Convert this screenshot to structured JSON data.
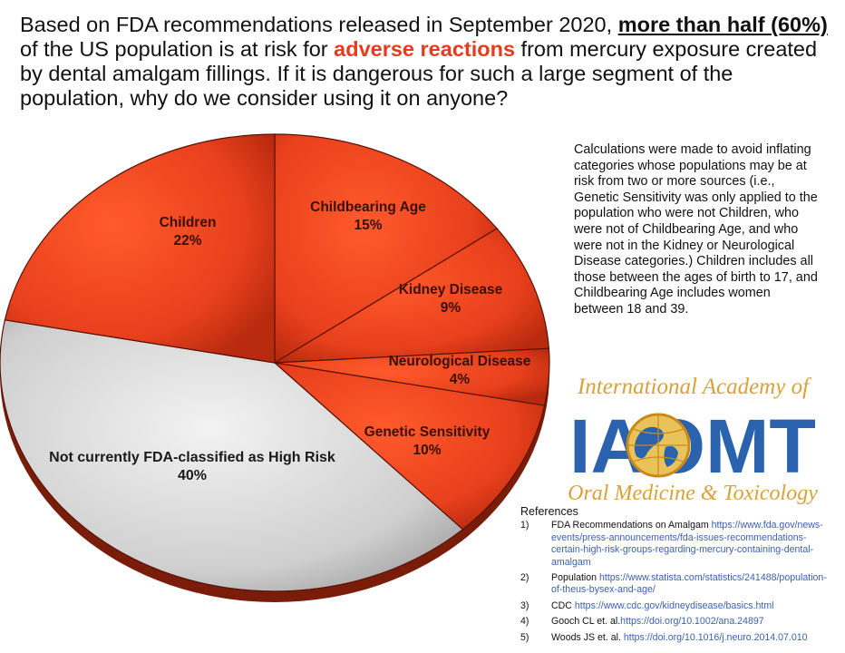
{
  "headline": {
    "part1": "Based on FDA recommendations released in September 2020, ",
    "emph": "more than half (60%)",
    "part2": " of the US population is at risk for ",
    "red": "adverse reactions",
    "part3": " from mercury exposure created by dental amalgam fillings. If it is dangerous for such a large segment of the population, why do we consider using it on anyone?"
  },
  "chart_data": {
    "type": "pie",
    "title": "",
    "slices": [
      {
        "label": "Childbearing Age",
        "value": 15,
        "value_label": "15%",
        "color": "#e8401c"
      },
      {
        "label": "Kidney Disease",
        "value": 9,
        "value_label": "9%",
        "color": "#e8401c"
      },
      {
        "label": "Neurological Disease",
        "value": 4,
        "value_label": "4%",
        "color": "#e8401c"
      },
      {
        "label": "Genetic Sensitivity",
        "value": 10,
        "value_label": "10%",
        "color": "#e8401c"
      },
      {
        "label": "Not currently FDA-classified as High Risk",
        "value": 40,
        "value_label": "40%",
        "color": "#d4d4d4"
      },
      {
        "label": "Children",
        "value": 22,
        "value_label": "22%",
        "color": "#e8401c"
      }
    ]
  },
  "explanation": "Calculations were made to avoid inflating categories whose populations may be at risk from two or more sources (i.e., Genetic Sensitivity was only applied to the population who were not Children, who were not of Childbearing Age, and who were not in the Kidney or Neurological Disease categories.) Children includes all those between the ages of birth to 17, and Childbearing Age includes women between 18 and 39.",
  "logo": {
    "top_text": "International Academy of",
    "acronym": "IAOMT",
    "bottom_text": "Oral Medicine & Toxicology"
  },
  "references": {
    "title": "References",
    "items": [
      {
        "num": "1)",
        "text": "FDA Recommendations on Amalgam ",
        "link": "https://www.fda.gov/news-events/press-announcements/fda-issues-recommendations-certain-high-risk-groups-regarding-mercury-containing-dental-amalgam"
      },
      {
        "num": "2)",
        "text": "Population ",
        "link": "https://www.statista.com/statistics/241488/population-of-theus-bysex-and-age/"
      },
      {
        "num": "3)",
        "text": "CDC ",
        "link": "https://www.cdc.gov/kidneydisease/basics.html"
      },
      {
        "num": "4)",
        "text": "Gooch CL et. al.",
        "link": "https://doi.org/10.1002/ana.24897"
      },
      {
        "num": "5)",
        "text": "Woods JS et. al. ",
        "link": "https://doi.org/10.1016/j.neuro.2014.07.010"
      }
    ]
  },
  "colors": {
    "accent_red": "#e43c1c",
    "slice_red": "#e8401c",
    "slice_grey": "#d4d4d4",
    "logo_gold": "#d9a13a",
    "logo_blue": "#2a62ad",
    "link_blue": "#3b5fb0"
  }
}
